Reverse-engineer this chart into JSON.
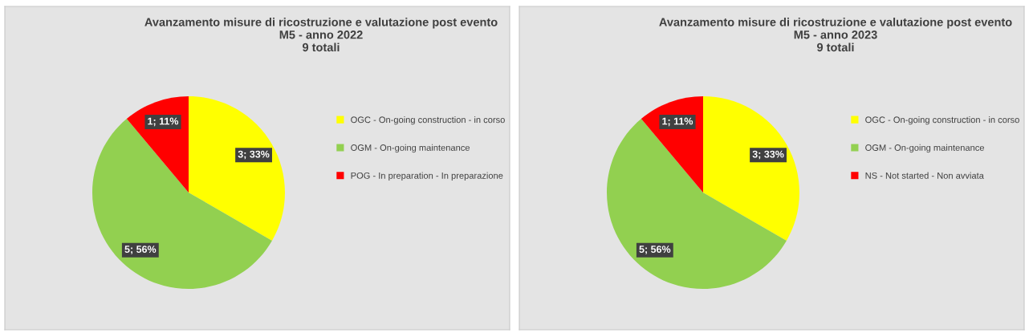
{
  "chart_data": [
    {
      "type": "pie",
      "title": "Avanzamento misure di ricostruzione e valutazione post evento\nM5 - anno 2022\n9 totali",
      "categories": [
        "OGC - On-going construction - in corso",
        "OGM - On-going maintenance",
        "POG - In preparation - In preparazione"
      ],
      "values": [
        3,
        5,
        1
      ],
      "colors": [
        "#ffff00",
        "#92d050",
        "#ff0000"
      ],
      "value_labels": [
        "3; 33%",
        "5; 56%",
        "1; 11%"
      ],
      "legend": "right"
    },
    {
      "type": "pie",
      "title": "Avanzamento misure di ricostruzione e valutazione post evento\nM5 - anno 2023\n9 totali",
      "categories": [
        "OGC - On-going construction - in corso",
        "OGM - On-going maintenance",
        "NS - Not started - Non avviata"
      ],
      "values": [
        3,
        5,
        1
      ],
      "colors": [
        "#ffff00",
        "#92d050",
        "#ff0000"
      ],
      "value_labels": [
        "3; 33%",
        "5; 56%",
        "1; 11%"
      ],
      "legend": "right"
    }
  ]
}
